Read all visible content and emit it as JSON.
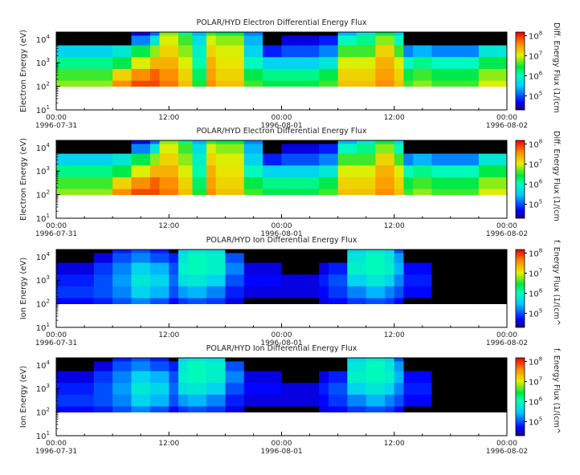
{
  "chart_data": [
    {
      "type": "heatmap",
      "title": "POLAR/HYD  Electron Differential Energy Flux",
      "ylabel": "Electron Energy (eV)",
      "yscale": "log",
      "ylim": [
        10,
        20000
      ],
      "y_ticks": [
        "10",
        "10",
        "10",
        "10"
      ],
      "y_tick_exponents": [
        "1",
        "2",
        "3",
        "4"
      ],
      "x_ticks": [
        {
          "time": "00:00",
          "date": "1996-07-31"
        },
        {
          "time": "12:00",
          "date": ""
        },
        {
          "time": "00:00",
          "date": "1996-08-01"
        },
        {
          "time": "12:00",
          "date": ""
        },
        {
          "time": "00:00",
          "date": "1996-08-02"
        }
      ],
      "colorbar": {
        "label": "Diff. Energy Flux (1/(cm",
        "scale": "log",
        "range": [
          20000,
          150000000
        ],
        "ticks": [
          "10",
          "10",
          "10",
          "10"
        ],
        "tick_exponents": [
          "5",
          "6",
          "7",
          "8"
        ]
      },
      "data_floor_eV": 100,
      "z_encoding": "log10 of differential energy flux; 0 = no signal (black)",
      "time_hours": [
        0,
        6,
        8,
        10,
        11,
        13,
        14.5,
        16,
        17,
        20,
        22,
        24,
        28,
        30,
        32,
        34,
        36,
        37,
        38,
        40,
        42,
        45
      ],
      "energy_levels_eV": [
        20000,
        10000,
        3000,
        1000,
        300,
        100
      ],
      "flux_log10": [
        [
          0,
          0,
          4.6,
          5.1,
          6.8,
          6.2,
          5.4,
          6.6,
          6.4,
          5.2,
          0,
          0,
          0,
          5.4,
          5.8,
          6.4,
          5.6,
          0,
          0,
          0,
          0,
          0
        ],
        [
          0,
          0,
          5.2,
          5.8,
          7.0,
          6.6,
          5.7,
          7.0,
          6.8,
          5.4,
          0,
          4.6,
          4.8,
          6.0,
          6.2,
          6.8,
          6.0,
          0,
          0,
          0,
          0,
          0
        ],
        [
          5.6,
          5.8,
          6.4,
          6.8,
          7.2,
          6.8,
          5.9,
          7.2,
          7.0,
          5.6,
          4.8,
          5.0,
          5.2,
          6.6,
          6.6,
          7.2,
          6.6,
          5.2,
          5.4,
          5.2,
          5.2,
          5.8
        ],
        [
          6.2,
          6.4,
          7.0,
          7.4,
          7.4,
          7.0,
          6.1,
          7.4,
          7.1,
          6.0,
          5.6,
          5.6,
          5.8,
          7.0,
          7.0,
          7.4,
          7.0,
          6.0,
          6.2,
          6.0,
          6.0,
          6.4
        ],
        [
          6.6,
          7.2,
          7.6,
          7.8,
          7.6,
          7.2,
          6.3,
          7.5,
          7.2,
          6.4,
          6.2,
          6.2,
          6.4,
          7.2,
          7.2,
          7.5,
          7.2,
          6.4,
          6.6,
          6.4,
          6.4,
          6.8
        ],
        [
          6.8,
          7.6,
          7.9,
          7.9,
          7.7,
          7.3,
          6.5,
          7.6,
          7.3,
          6.6,
          6.4,
          6.4,
          6.6,
          7.3,
          7.3,
          7.6,
          7.3,
          6.6,
          6.8,
          6.6,
          6.6,
          7.0
        ]
      ]
    },
    {
      "type": "heatmap",
      "title": "POLAR/HYD  Electron Differential Energy Flux",
      "ylabel": "Electron Energy (eV)",
      "yscale": "log",
      "ylim": [
        10,
        20000
      ],
      "y_ticks": [
        "10",
        "10",
        "10",
        "10"
      ],
      "y_tick_exponents": [
        "1",
        "2",
        "3",
        "4"
      ],
      "x_ticks": [
        {
          "time": "00:00",
          "date": "1996-07-31"
        },
        {
          "time": "12:00",
          "date": ""
        },
        {
          "time": "00:00",
          "date": "1996-08-01"
        },
        {
          "time": "12:00",
          "date": ""
        },
        {
          "time": "00:00",
          "date": "1996-08-02"
        }
      ],
      "colorbar": {
        "label": "Diff. Energy Flux (1/(cm",
        "scale": "log",
        "range": [
          20000,
          150000000
        ],
        "ticks": [
          "10",
          "10",
          "10",
          "10"
        ],
        "tick_exponents": [
          "5",
          "6",
          "7",
          "8"
        ]
      },
      "data_floor_eV": 100,
      "z_encoding": "log10 of differential energy flux; 0 = no signal (black)",
      "time_hours": [
        0,
        6,
        8,
        10,
        11,
        13,
        14.5,
        16,
        17,
        20,
        22,
        24,
        28,
        30,
        32,
        34,
        36,
        37,
        38,
        40,
        42,
        45
      ],
      "energy_levels_eV": [
        20000,
        10000,
        3000,
        1000,
        300,
        100
      ],
      "flux_log10": [
        [
          0,
          0,
          4.6,
          5.1,
          6.8,
          6.2,
          5.4,
          6.6,
          6.4,
          5.2,
          0,
          0,
          0,
          5.4,
          5.8,
          6.4,
          5.6,
          0,
          0,
          0,
          0,
          0
        ],
        [
          0,
          0,
          5.2,
          5.8,
          7.0,
          6.6,
          5.7,
          7.0,
          6.8,
          5.4,
          0,
          4.6,
          4.8,
          6.0,
          6.2,
          6.8,
          6.0,
          0,
          0,
          0,
          0,
          0
        ],
        [
          5.6,
          5.8,
          6.4,
          6.8,
          7.2,
          6.8,
          5.9,
          7.2,
          7.0,
          5.6,
          4.8,
          5.0,
          5.2,
          6.6,
          6.6,
          7.2,
          6.6,
          5.2,
          5.4,
          5.2,
          5.2,
          5.8
        ],
        [
          6.2,
          6.4,
          7.0,
          7.4,
          7.4,
          7.0,
          6.1,
          7.4,
          7.1,
          6.0,
          5.6,
          5.6,
          5.8,
          7.0,
          7.0,
          7.4,
          7.0,
          6.0,
          6.2,
          6.0,
          6.0,
          6.4
        ],
        [
          6.6,
          7.2,
          7.6,
          7.8,
          7.6,
          7.2,
          6.3,
          7.5,
          7.2,
          6.4,
          6.2,
          6.2,
          6.4,
          7.2,
          7.2,
          7.5,
          7.2,
          6.4,
          6.6,
          6.4,
          6.4,
          6.8
        ],
        [
          6.8,
          7.6,
          7.9,
          7.9,
          7.7,
          7.3,
          6.5,
          7.6,
          7.3,
          6.6,
          6.4,
          6.4,
          6.6,
          7.3,
          7.3,
          7.6,
          7.3,
          6.6,
          6.8,
          6.6,
          6.6,
          7.0
        ]
      ]
    },
    {
      "type": "heatmap",
      "title": "POLAR/HYD  Ion Differential Energy Flux",
      "ylabel": "Ion Energy (eV)",
      "yscale": "log",
      "ylim": [
        10,
        20000
      ],
      "y_ticks": [
        "10",
        "10",
        "10",
        "10"
      ],
      "y_tick_exponents": [
        "1",
        "2",
        "3",
        "4"
      ],
      "x_ticks": [
        {
          "time": "00:00",
          "date": "1996-07-31"
        },
        {
          "time": "12:00",
          "date": ""
        },
        {
          "time": "00:00",
          "date": "1996-08-01"
        },
        {
          "time": "12:00",
          "date": ""
        },
        {
          "time": "00:00",
          "date": "1996-08-02"
        }
      ],
      "colorbar": {
        "label": "f. Energy Flux (1/(cm^",
        "scale": "log",
        "range": [
          20000,
          150000000
        ],
        "ticks": [
          "10",
          "10",
          "10",
          "10"
        ],
        "tick_exponents": [
          "5",
          "6",
          "7",
          "8"
        ]
      },
      "data_floor_eV": 100,
      "z_encoding": "log10 of differential energy flux; 0 = no signal (black)",
      "time_hours": [
        0,
        4,
        6,
        8,
        10,
        12,
        13,
        14,
        16,
        18,
        20,
        24,
        28,
        29,
        31,
        33,
        35,
        36,
        37,
        40,
        45
      ],
      "energy_levels_eV": [
        20000,
        10000,
        3000,
        1000,
        300,
        100
      ],
      "flux_log10": [
        [
          0,
          0,
          4.8,
          5.0,
          4.8,
          0,
          5.6,
          5.8,
          5.7,
          0,
          0,
          0,
          0,
          0,
          5.6,
          5.8,
          5.6,
          5.0,
          0,
          0,
          0
        ],
        [
          0,
          4.6,
          5.0,
          5.2,
          5.0,
          4.8,
          5.8,
          6.0,
          5.9,
          5.0,
          0,
          0,
          0,
          0,
          5.8,
          6.0,
          5.8,
          5.3,
          0,
          0,
          0
        ],
        [
          4.6,
          4.9,
          5.2,
          5.6,
          5.4,
          5.0,
          5.9,
          6.0,
          5.9,
          5.2,
          4.6,
          0,
          4.6,
          4.8,
          5.9,
          6.0,
          5.9,
          5.4,
          4.7,
          0,
          0
        ],
        [
          4.8,
          5.0,
          5.3,
          5.8,
          5.6,
          5.1,
          5.7,
          5.8,
          5.6,
          5.0,
          4.7,
          4.6,
          4.8,
          5.0,
          5.6,
          5.8,
          5.6,
          5.2,
          4.8,
          0,
          0
        ],
        [
          4.9,
          5.0,
          5.2,
          5.6,
          5.4,
          5.0,
          5.3,
          5.4,
          5.2,
          4.8,
          4.6,
          4.6,
          4.7,
          4.9,
          5.2,
          5.4,
          5.2,
          5.0,
          4.7,
          0,
          0
        ],
        [
          4.7,
          4.8,
          5.0,
          5.2,
          5.0,
          4.7,
          4.9,
          5.0,
          4.9,
          4.6,
          0,
          0,
          4.6,
          4.7,
          4.9,
          5.0,
          4.9,
          4.7,
          0,
          0,
          0
        ]
      ]
    },
    {
      "type": "heatmap",
      "title": "POLAR/HYD  Ion Differential Energy Flux",
      "ylabel": "Ion Energy (eV)",
      "yscale": "log",
      "ylim": [
        10,
        20000
      ],
      "y_ticks": [
        "10",
        "10",
        "10",
        "10"
      ],
      "y_tick_exponents": [
        "1",
        "2",
        "3",
        "4"
      ],
      "x_ticks": [
        {
          "time": "00:00",
          "date": "1996-07-31"
        },
        {
          "time": "12:00",
          "date": ""
        },
        {
          "time": "00:00",
          "date": "1996-08-01"
        },
        {
          "time": "12:00",
          "date": ""
        },
        {
          "time": "00:00",
          "date": "1996-08-02"
        }
      ],
      "colorbar": {
        "label": "f. Energy Flux (1/(cm^",
        "scale": "log",
        "range": [
          20000,
          150000000
        ],
        "ticks": [
          "10",
          "10",
          "10",
          "10"
        ],
        "tick_exponents": [
          "5",
          "6",
          "7",
          "8"
        ]
      },
      "data_floor_eV": 100,
      "z_encoding": "log10 of differential energy flux; 0 = no signal (black)",
      "time_hours": [
        0,
        4,
        6,
        8,
        10,
        12,
        13,
        14,
        16,
        18,
        20,
        24,
        28,
        29,
        31,
        33,
        35,
        36,
        37,
        40,
        45
      ],
      "energy_levels_eV": [
        20000,
        10000,
        3000,
        1000,
        300,
        100
      ],
      "flux_log10": [
        [
          0,
          0,
          4.8,
          5.0,
          4.8,
          0,
          5.6,
          5.8,
          5.7,
          0,
          0,
          0,
          0,
          0,
          5.6,
          5.8,
          5.6,
          5.0,
          0,
          0,
          0
        ],
        [
          0,
          4.6,
          5.0,
          5.2,
          5.0,
          4.8,
          5.8,
          6.0,
          5.9,
          5.0,
          0,
          0,
          0,
          0,
          5.8,
          6.0,
          5.8,
          5.3,
          0,
          0,
          0
        ],
        [
          4.6,
          4.9,
          5.2,
          5.6,
          5.4,
          5.0,
          5.9,
          6.0,
          5.9,
          5.2,
          4.6,
          0,
          4.6,
          4.8,
          5.9,
          6.0,
          5.9,
          5.4,
          4.7,
          0,
          0
        ],
        [
          4.8,
          5.0,
          5.3,
          5.8,
          5.6,
          5.1,
          5.7,
          5.8,
          5.6,
          5.0,
          4.7,
          4.6,
          4.8,
          5.0,
          5.6,
          5.8,
          5.6,
          5.2,
          4.8,
          0,
          0
        ],
        [
          4.9,
          5.0,
          5.2,
          5.6,
          5.4,
          5.0,
          5.3,
          5.4,
          5.2,
          4.8,
          4.6,
          4.6,
          4.7,
          4.9,
          5.2,
          5.4,
          5.2,
          5.0,
          4.7,
          0,
          0
        ],
        [
          4.7,
          4.8,
          5.0,
          5.2,
          5.0,
          4.7,
          4.9,
          5.0,
          4.9,
          4.6,
          0,
          0,
          4.6,
          4.7,
          4.9,
          5.0,
          4.9,
          4.7,
          0,
          0,
          0
        ]
      ]
    }
  ]
}
